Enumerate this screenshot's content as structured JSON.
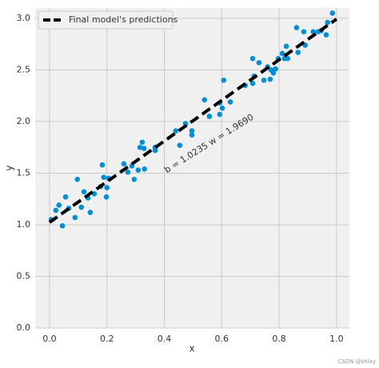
{
  "chart_data": {
    "type": "scatter",
    "xlabel": "x",
    "ylabel": "y",
    "xlim": [
      -0.05,
      1.045
    ],
    "ylim": [
      0,
      3.1
    ],
    "xticks": [
      {
        "value": 0,
        "label": "0.0"
      },
      0.2,
      0.4,
      0.6,
      0.8,
      {
        "value": 1,
        "label": "1.0"
      }
    ],
    "yticks": [
      {
        "value": 0,
        "label": "0.0"
      },
      0.5,
      {
        "value": 1,
        "label": "1.0"
      },
      1.5,
      {
        "value": 2,
        "label": "2.0"
      },
      2.5,
      {
        "value": 3,
        "label": "3.0"
      }
    ],
    "grid": true,
    "legend": "upper left",
    "annotation": "b = 1.0235 w = 1.9690",
    "watermark": "CSDN @shlay",
    "series": [
      {
        "type": "scatter",
        "color": "#008fd5",
        "x": [
          0.006,
          0.022,
          0.033,
          0.045,
          0.056,
          0.067,
          0.089,
          0.097,
          0.111,
          0.12,
          0.134,
          0.142,
          0.156,
          0.178,
          0.184,
          0.189,
          0.198,
          0.2,
          0.206,
          0.259,
          0.273,
          0.287,
          0.295,
          0.309,
          0.315,
          0.323,
          0.331,
          0.329,
          0.368,
          0.368,
          0.44,
          0.454,
          0.474,
          0.496,
          0.496,
          0.54,
          0.557,
          0.593,
          0.593,
          0.602,
          0.607,
          0.63,
          0.682,
          0.708,
          0.713,
          0.708,
          0.73,
          0.747,
          0.76,
          0.769,
          0.772,
          0.78,
          0.788,
          0.797,
          0.811,
          0.819,
          0.825,
          0.83,
          0.861,
          0.866,
          0.886,
          0.891,
          0.919,
          0.936,
          0.947,
          0.964,
          0.969,
          0.986
        ],
        "values": [
          1.05,
          1.14,
          1.19,
          0.99,
          1.27,
          1.16,
          1.07,
          1.44,
          1.17,
          1.32,
          1.26,
          1.12,
          1.3,
          1.37,
          1.58,
          1.46,
          1.27,
          1.36,
          1.45,
          1.59,
          1.51,
          1.57,
          1.44,
          1.53,
          1.75,
          1.8,
          1.54,
          1.74,
          1.75,
          1.72,
          1.91,
          1.77,
          1.98,
          1.87,
          1.91,
          2.21,
          2.05,
          2.18,
          2.07,
          2.13,
          2.4,
          2.19,
          2.35,
          2.61,
          2.44,
          2.37,
          2.57,
          2.4,
          2.53,
          2.41,
          2.5,
          2.47,
          2.51,
          2.61,
          2.66,
          2.61,
          2.73,
          2.61,
          2.91,
          2.67,
          2.87,
          2.74,
          2.87,
          2.87,
          2.88,
          2.84,
          2.96,
          3.05
        ]
      },
      {
        "type": "line",
        "name": "Final model's predictions",
        "color": "#000000",
        "linestyle": "dashed",
        "x": [
          0,
          1
        ],
        "values": [
          1.0235,
          2.9925
        ]
      }
    ]
  }
}
